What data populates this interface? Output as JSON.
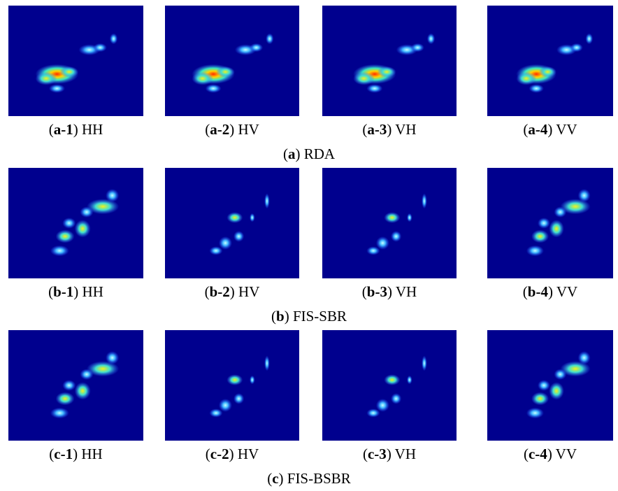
{
  "rows": [
    {
      "caption": "(a) RDA",
      "panels": [
        {
          "label": "(a-1) HH"
        },
        {
          "label": "(a-2) HV"
        },
        {
          "label": "(a-3) VH"
        },
        {
          "label": "(a-4) VV"
        }
      ]
    },
    {
      "caption": "(b) FIS-SBR",
      "panels": [
        {
          "label": "(b-1) HH"
        },
        {
          "label": "(b-2) HV"
        },
        {
          "label": "(b-3) VH"
        },
        {
          "label": "(b-4) VV"
        }
      ]
    },
    {
      "caption": "(c) FIS-BSBR",
      "panels": [
        {
          "label": "(c-1) HH"
        },
        {
          "label": "(c-2) HV"
        },
        {
          "label": "(c-3) VH"
        },
        {
          "label": "(c-4) VV"
        }
      ]
    }
  ]
}
